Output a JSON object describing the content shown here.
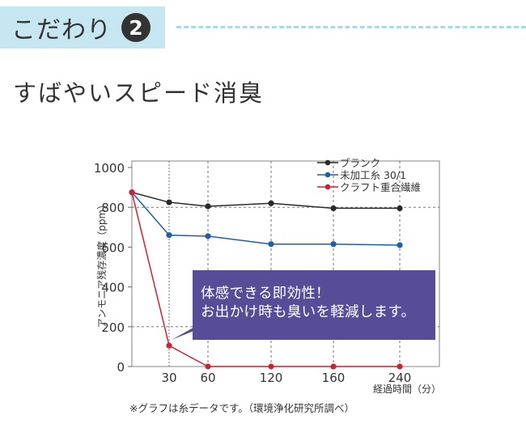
{
  "header": {
    "label": "こだわり",
    "badge": "2"
  },
  "subtitle": "すばやいスピード消臭",
  "callout": {
    "line1": "体感できる即効性！",
    "line2": "お出かけ時も臭いを軽減します。",
    "color": "#564c98"
  },
  "footnote": "※グラフは糸データです。（環境浄化研究所調べ）",
  "colors": {
    "header_band": "#c6e6f2",
    "dash": "#a9d8ec"
  },
  "chart_data": {
    "type": "line",
    "ylabel": "アンモニア残存濃度（ppm）",
    "xlabel": "経過時間（分）",
    "x_ticks": [
      "30",
      "60",
      "120",
      "160",
      "240"
    ],
    "y_ticks": [
      "0",
      "200",
      "400",
      "600",
      "800",
      "1000"
    ],
    "ylim": [
      0,
      1000
    ],
    "grid": "dashed at x ticks and y=200, 800",
    "legend_position": "top-right",
    "series": [
      {
        "name": "ブランク",
        "color": "#2a2a2a",
        "points": [
          [
            0,
            875
          ],
          [
            30,
            825
          ],
          [
            60,
            805
          ],
          [
            120,
            820
          ],
          [
            160,
            795
          ],
          [
            240,
            795
          ]
        ]
      },
      {
        "name": "未加工糸 30/1",
        "color": "#1f5ea8",
        "points": [
          [
            0,
            875
          ],
          [
            30,
            660
          ],
          [
            60,
            655
          ],
          [
            120,
            615
          ],
          [
            160,
            615
          ],
          [
            240,
            610
          ]
        ]
      },
      {
        "name": "クラフト重合繊維",
        "color": "#cc2233",
        "points": [
          [
            0,
            875
          ],
          [
            30,
            105
          ],
          [
            60,
            0
          ],
          [
            120,
            0
          ],
          [
            160,
            0
          ],
          [
            240,
            0
          ]
        ]
      }
    ]
  }
}
